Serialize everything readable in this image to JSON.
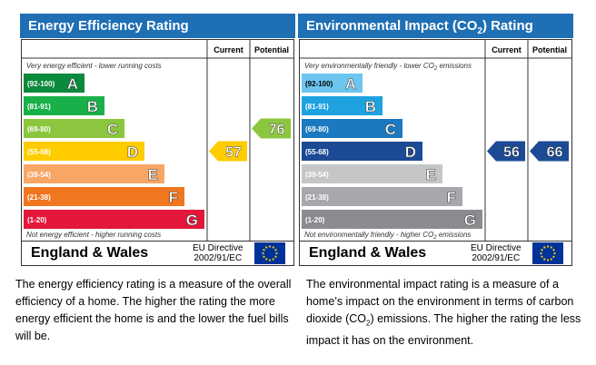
{
  "colors": {
    "title_bar": "#1f6fb5",
    "eer_bands": [
      "#0a8a3c",
      "#19b04a",
      "#8cc63e",
      "#ffcc00",
      "#f7a666",
      "#f0771f",
      "#e3173a"
    ],
    "eir_bands": [
      "#6cc6ef",
      "#1fa2e0",
      "#1a79c0",
      "#1c4a95",
      "#c5c6c8",
      "#a6a8ab",
      "#8a8c8f"
    ],
    "eu_flag": "#003399",
    "eu_stars": "#ffcc00"
  },
  "eer": {
    "title": "Energy Efficiency Rating",
    "col_current": "Current",
    "col_potential": "Potential",
    "top_note": "Very energy efficient - lower running costs",
    "bottom_note": "Not energy efficient - higher running costs",
    "region": "England & Wales",
    "eu_line1": "EU Directive",
    "eu_line2": "2002/91/EC",
    "description": "The energy efficiency rating is a measure of the overall efficiency of a home. The higher the rating the more energy efficient the home is and the lower the fuel bills will be."
  },
  "eir": {
    "title_prefix": "Environmental Impact (CO",
    "title_sub": "2",
    "title_suffix": ") Rating",
    "col_current": "Current",
    "col_potential": "Potential",
    "top_note_prefix": "Very environmentally friendly - lower CO",
    "top_note_sub": "2",
    "top_note_suffix": " emissions",
    "bottom_note_prefix": "Not environmentally friendly - higher CO",
    "bottom_note_sub": "2",
    "bottom_note_suffix": " emissions",
    "region": "England & Wales",
    "eu_line1": "EU Directive",
    "eu_line2": "2002/91/EC",
    "description_1": "The environmental impact rating is a measure of a home’s impact on the environment in terms of carbon dioxide (CO",
    "description_sub": "2",
    "description_2": ") emissions. The higher the rating the less impact it has on the environment."
  },
  "chart_data": [
    {
      "type": "bar",
      "title": "Energy Efficiency Rating",
      "categories": [
        "A",
        "B",
        "C",
        "D",
        "E",
        "F",
        "G"
      ],
      "ranges": [
        "(92-100)",
        "(81-91)",
        "(69-80)",
        "(55-68)",
        "(39-54)",
        "(21-38)",
        "(1-20)"
      ],
      "current": 57,
      "potential": 76
    },
    {
      "type": "bar",
      "title": "Environmental Impact (CO2) Rating",
      "categories": [
        "A",
        "B",
        "C",
        "D",
        "E",
        "F",
        "G"
      ],
      "ranges": [
        "(92-100)",
        "(81-91)",
        "(69-80)",
        "(55-68)",
        "(39-54)",
        "(21-38)",
        "(1-20)"
      ],
      "current": 56,
      "potential": 66
    }
  ]
}
